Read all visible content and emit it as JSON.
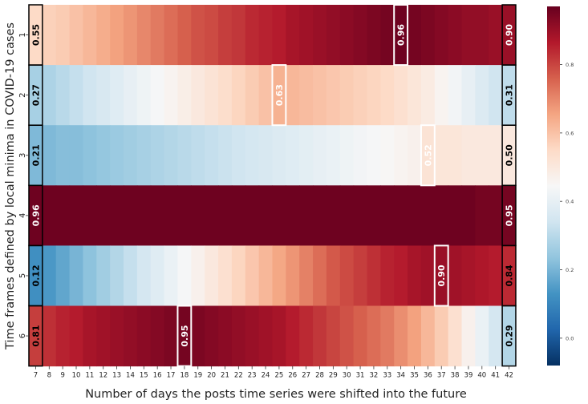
{
  "chart_data": {
    "type": "heatmap",
    "xlabel": "Number of days the posts time series were shifted into the future",
    "ylabel": "Time frames defined by local minima in COVID-19 cases",
    "x_ticks": [
      7,
      8,
      9,
      10,
      11,
      12,
      13,
      14,
      15,
      16,
      17,
      18,
      19,
      20,
      21,
      22,
      23,
      24,
      25,
      26,
      27,
      28,
      29,
      30,
      31,
      32,
      33,
      34,
      35,
      36,
      37,
      38,
      39,
      40,
      41,
      42
    ],
    "y_ticks": [
      "1",
      "2",
      "3",
      "4",
      "5",
      "6"
    ],
    "colorbar": {
      "ticks": [
        "0.0",
        "0.2",
        "0.4",
        "0.6",
        "0.8"
      ],
      "tick_values": [
        0.0,
        0.2,
        0.4,
        0.6,
        0.8
      ],
      "range": [
        -0.08,
        0.97
      ]
    },
    "rows": [
      {
        "label": "1",
        "start": 0.55,
        "end": 0.9,
        "max_day": 34,
        "max_value": 0.96,
        "max_label": "0.96",
        "start_label": "0.55",
        "end_label": "0.90",
        "values": [
          0.55,
          0.57,
          0.58,
          0.6,
          0.62,
          0.64,
          0.66,
          0.68,
          0.7,
          0.72,
          0.74,
          0.76,
          0.78,
          0.79,
          0.81,
          0.82,
          0.84,
          0.85,
          0.86,
          0.88,
          0.89,
          0.9,
          0.91,
          0.92,
          0.93,
          0.94,
          0.95,
          0.96,
          0.95,
          0.94,
          0.93,
          0.92,
          0.91,
          0.91,
          0.9,
          0.9
        ]
      },
      {
        "label": "2",
        "start": 0.27,
        "end": 0.31,
        "max_day": 25,
        "max_value": 0.63,
        "max_label": "0.63",
        "start_label": "0.27",
        "end_label": "0.31",
        "values": [
          0.27,
          0.28,
          0.3,
          0.32,
          0.34,
          0.36,
          0.38,
          0.4,
          0.42,
          0.44,
          0.46,
          0.48,
          0.5,
          0.52,
          0.54,
          0.56,
          0.58,
          0.6,
          0.63,
          0.62,
          0.61,
          0.6,
          0.59,
          0.58,
          0.57,
          0.56,
          0.55,
          0.53,
          0.51,
          0.49,
          0.46,
          0.43,
          0.4,
          0.37,
          0.34,
          0.31
        ]
      },
      {
        "label": "3",
        "start": 0.21,
        "end": 0.5,
        "max_day": 36,
        "max_value": 0.52,
        "max_label": "0.52",
        "start_label": "0.21",
        "end_label": "0.50",
        "values": [
          0.21,
          0.21,
          0.22,
          0.22,
          0.23,
          0.24,
          0.25,
          0.26,
          0.27,
          0.28,
          0.29,
          0.3,
          0.31,
          0.32,
          0.33,
          0.34,
          0.35,
          0.36,
          0.37,
          0.38,
          0.39,
          0.4,
          0.41,
          0.42,
          0.43,
          0.44,
          0.45,
          0.46,
          0.47,
          0.52,
          0.51,
          0.51,
          0.5,
          0.5,
          0.5,
          0.5
        ]
      },
      {
        "label": "4",
        "start": 0.96,
        "end": 0.95,
        "max_day": 7,
        "max_value": 0.96,
        "max_label": "0.96",
        "start_label": "0.96",
        "end_label": "0.95",
        "values": [
          0.96,
          0.96,
          0.96,
          0.96,
          0.96,
          0.96,
          0.96,
          0.96,
          0.96,
          0.96,
          0.96,
          0.96,
          0.96,
          0.96,
          0.96,
          0.96,
          0.96,
          0.96,
          0.96,
          0.96,
          0.96,
          0.96,
          0.96,
          0.96,
          0.96,
          0.96,
          0.96,
          0.96,
          0.96,
          0.96,
          0.96,
          0.96,
          0.96,
          0.95,
          0.95,
          0.95
        ]
      },
      {
        "label": "5",
        "start": 0.12,
        "end": 0.84,
        "max_day": 37,
        "max_value": 0.9,
        "max_label": "0.90",
        "start_label": "0.12",
        "end_label": "0.84",
        "values": [
          0.12,
          0.14,
          0.17,
          0.2,
          0.23,
          0.26,
          0.29,
          0.32,
          0.35,
          0.38,
          0.41,
          0.44,
          0.47,
          0.5,
          0.53,
          0.56,
          0.59,
          0.62,
          0.65,
          0.68,
          0.71,
          0.74,
          0.77,
          0.79,
          0.81,
          0.83,
          0.85,
          0.86,
          0.88,
          0.89,
          0.9,
          0.89,
          0.88,
          0.87,
          0.86,
          0.84
        ]
      },
      {
        "label": "6",
        "start": 0.81,
        "end": 0.29,
        "max_day": 18,
        "max_value": 0.95,
        "max_label": "0.95",
        "start_label": "0.81",
        "end_label": "0.29",
        "values": [
          0.81,
          0.83,
          0.85,
          0.86,
          0.88,
          0.89,
          0.9,
          0.91,
          0.92,
          0.93,
          0.94,
          0.95,
          0.94,
          0.93,
          0.92,
          0.91,
          0.9,
          0.89,
          0.88,
          0.86,
          0.84,
          0.82,
          0.8,
          0.78,
          0.76,
          0.74,
          0.72,
          0.69,
          0.66,
          0.62,
          0.58,
          0.53,
          0.47,
          0.41,
          0.35,
          0.29
        ]
      }
    ],
    "colormap": "RdBu_r"
  }
}
